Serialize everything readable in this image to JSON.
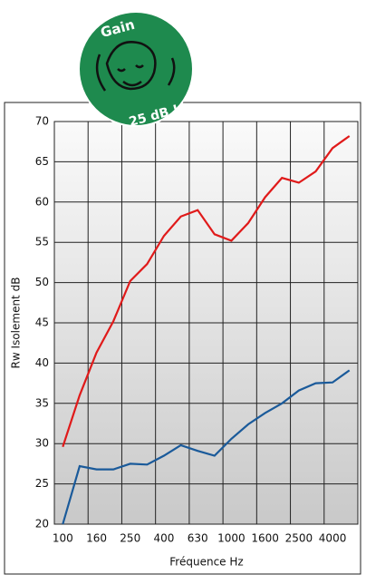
{
  "badge": {
    "top": "Gain",
    "bottom": "25 dB !"
  },
  "chart_data": {
    "type": "line",
    "x_label": "Fréquence Hz",
    "y_label": "Rw Isolement dB",
    "categories": [
      "100",
      null,
      "160",
      null,
      "250",
      null,
      "400",
      null,
      "630",
      null,
      "1000",
      null,
      "1600",
      null,
      "2500",
      null,
      "4000",
      null
    ],
    "series": [
      {
        "color": "#e01a1a",
        "values": [
          29.6,
          36,
          41.3,
          45.2,
          50.2,
          52.3,
          55.8,
          58.2,
          59,
          56,
          55.2,
          57.4,
          60.6,
          63,
          62.4,
          63.8,
          66.7,
          68.2
        ]
      },
      {
        "color": "#1a5a9a",
        "values": [
          20,
          27.2,
          26.8,
          26.8,
          27.5,
          27.4,
          28.5,
          29.8,
          29.1,
          28.5,
          30.6,
          32.4,
          33.8,
          35,
          36.6,
          37.5,
          37.6,
          39.1
        ]
      }
    ],
    "ylim": [
      20,
      70
    ],
    "yticks": [
      20,
      25,
      30,
      35,
      40,
      45,
      50,
      55,
      60,
      65,
      70
    ],
    "grid": true
  }
}
